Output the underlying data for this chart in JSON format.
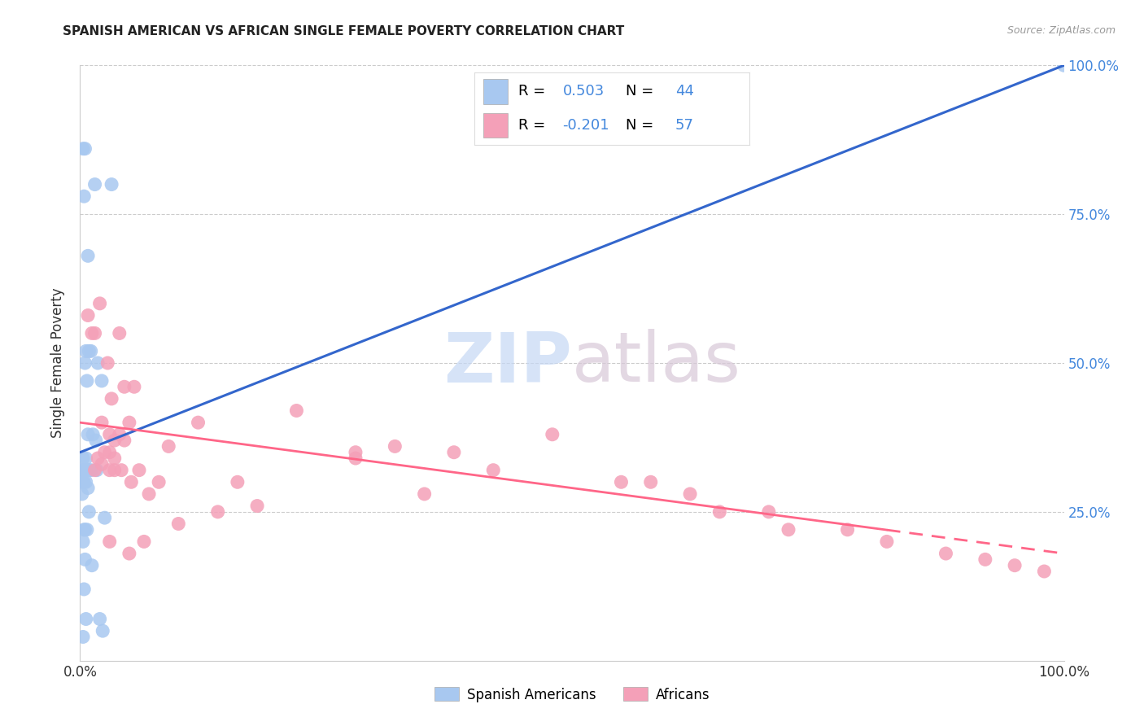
{
  "title": "SPANISH AMERICAN VS AFRICAN SINGLE FEMALE POVERTY CORRELATION CHART",
  "source": "Source: ZipAtlas.com",
  "ylabel": "Single Female Poverty",
  "legend_label1": "Spanish Americans",
  "legend_label2": "Africans",
  "r1": 0.503,
  "n1": 44,
  "r2": -0.201,
  "n2": 57,
  "color_blue": "#A8C8F0",
  "color_pink": "#F4A0B8",
  "color_line_blue": "#3366CC",
  "color_line_pink": "#FF6688",
  "color_text_blue": "#4488DD",
  "color_text_r1": "#4488DD",
  "color_text_r2": "#4488DD",
  "spanish_x": [
    0.5,
    1.5,
    3.2,
    0.3,
    0.8,
    0.4,
    1.1,
    0.6,
    1.8,
    0.9,
    2.2,
    0.7,
    1.3,
    0.5,
    0.8,
    1.6,
    0.3,
    0.6,
    0.4,
    0.2,
    0.5,
    0.7,
    0.9,
    1.1,
    0.3,
    0.4,
    0.6,
    0.8,
    1.7,
    2.5,
    0.2,
    0.5,
    0.7,
    0.4,
    0.3,
    0.9,
    0.5,
    1.2,
    0.4,
    2.0,
    0.6,
    2.3,
    0.3,
    100.0
  ],
  "spanish_y": [
    86.0,
    80.0,
    80.0,
    86.0,
    68.0,
    78.0,
    52.0,
    52.0,
    50.0,
    52.0,
    47.0,
    47.0,
    38.0,
    50.0,
    38.0,
    37.0,
    34.0,
    34.0,
    32.0,
    32.0,
    32.0,
    32.0,
    32.0,
    32.0,
    30.0,
    30.0,
    30.0,
    29.0,
    32.0,
    24.0,
    28.0,
    22.0,
    22.0,
    22.0,
    20.0,
    25.0,
    17.0,
    16.0,
    12.0,
    7.0,
    7.0,
    5.0,
    4.0,
    100.0
  ],
  "african_x": [
    0.8,
    2.0,
    1.2,
    4.0,
    1.5,
    2.8,
    5.5,
    4.5,
    3.2,
    2.2,
    5.0,
    4.0,
    3.0,
    3.5,
    4.5,
    3.0,
    2.5,
    3.5,
    1.8,
    2.2,
    3.0,
    3.5,
    4.2,
    1.5,
    6.0,
    8.0,
    5.2,
    16.0,
    12.0,
    9.0,
    22.0,
    28.0,
    32.0,
    38.0,
    28.0,
    55.0,
    58.0,
    62.0,
    65.0,
    70.0,
    48.0,
    72.0,
    78.0,
    82.0,
    88.0,
    92.0,
    95.0,
    98.0,
    42.0,
    35.0,
    18.0,
    7.0,
    14.0,
    10.0,
    6.5,
    5.0,
    3.0
  ],
  "african_y": [
    58.0,
    60.0,
    55.0,
    55.0,
    55.0,
    50.0,
    46.0,
    46.0,
    44.0,
    40.0,
    40.0,
    38.0,
    38.0,
    37.0,
    37.0,
    35.0,
    35.0,
    34.0,
    34.0,
    33.0,
    32.0,
    32.0,
    32.0,
    32.0,
    32.0,
    30.0,
    30.0,
    30.0,
    40.0,
    36.0,
    42.0,
    34.0,
    36.0,
    35.0,
    35.0,
    30.0,
    30.0,
    28.0,
    25.0,
    25.0,
    38.0,
    22.0,
    22.0,
    20.0,
    18.0,
    17.0,
    16.0,
    15.0,
    32.0,
    28.0,
    26.0,
    28.0,
    25.0,
    23.0,
    20.0,
    18.0,
    20.0
  ],
  "blue_line_x0": 0.0,
  "blue_line_y0": 35.0,
  "blue_line_x1": 100.0,
  "blue_line_y1": 100.0,
  "pink_line_x0": 0.0,
  "pink_line_y0": 40.0,
  "pink_line_x1": 100.0,
  "pink_line_y1": 18.0,
  "xlim": [
    0,
    100
  ],
  "ylim": [
    0,
    100
  ],
  "yticks_right": [
    25.0,
    50.0,
    75.0,
    100.0
  ],
  "ytick_labels_right": [
    "25.0%",
    "50.0%",
    "75.0%",
    "100.0%"
  ],
  "xtick_labels": [
    "0.0%",
    "100.0%"
  ],
  "background_color": "#ffffff",
  "grid_color": "#cccccc",
  "spine_color": "#cccccc"
}
